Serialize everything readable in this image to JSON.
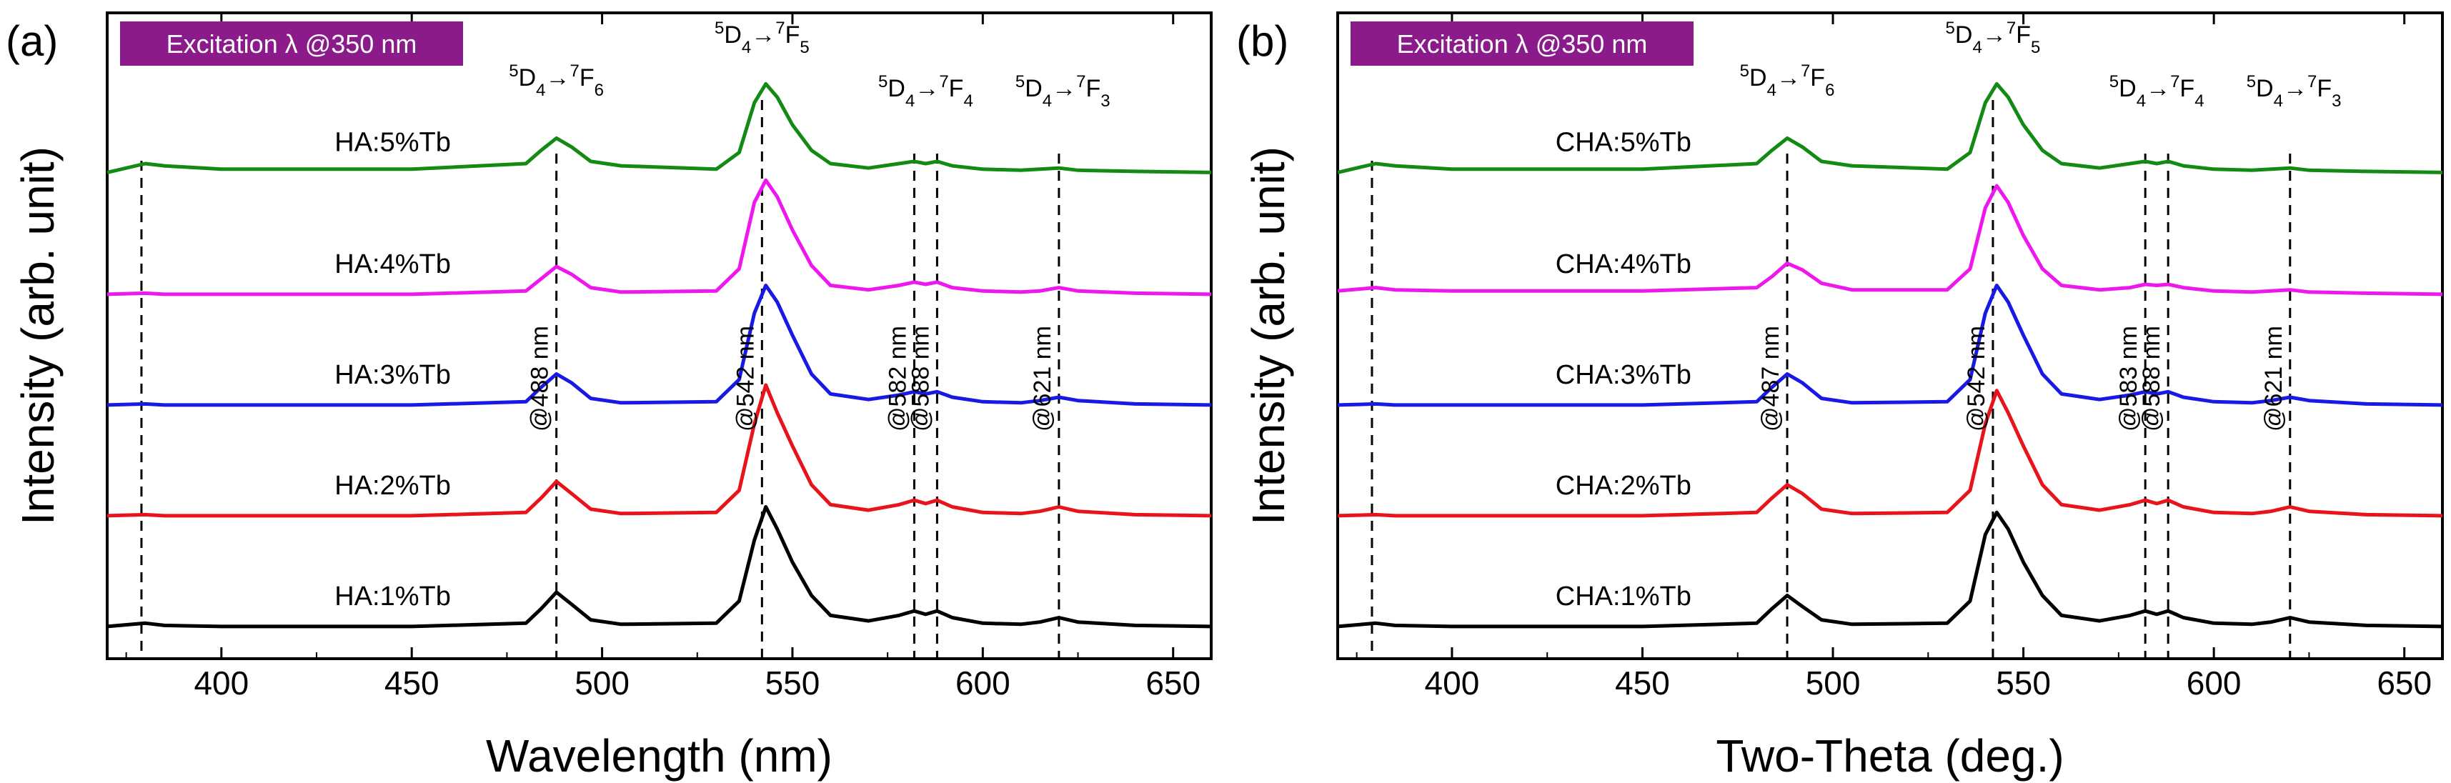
{
  "colors": {
    "HA:1%Tb": "#000000",
    "HA:2%Tb": "#e8141b",
    "HA:3%Tb": "#1919e6",
    "HA:4%Tb": "#ee18ee",
    "HA:5%Tb": "#138a13",
    "excitation_box": "#8b1a8b"
  },
  "chart_data": [
    {
      "type": "line",
      "panel_label": "(a)",
      "excitation_label": "Excitation λ @350 nm",
      "xlabel": "Wavelength (nm)",
      "ylabel": "Intensity (arb. unit)",
      "xlim": [
        370,
        660
      ],
      "xticks": [
        400,
        450,
        500,
        550,
        600,
        650
      ],
      "ylim": [
        0,
        6
      ],
      "y_ticks_labeled": false,
      "grid": false,
      "x": [
        370,
        380,
        385,
        400,
        450,
        480,
        484,
        488,
        492,
        497,
        505,
        530,
        536,
        540,
        543,
        546,
        550,
        555,
        560,
        570,
        578,
        582,
        585,
        588,
        592,
        600,
        610,
        615,
        620,
        625,
        640,
        660
      ],
      "series": [
        {
          "name": "HA:1%Tb",
          "offset": 0.0,
          "color": "#000000",
          "values": [
            0.02,
            0.05,
            0.03,
            0.02,
            0.02,
            0.05,
            0.18,
            0.33,
            0.22,
            0.08,
            0.04,
            0.05,
            0.25,
            0.8,
            1.1,
            0.9,
            0.6,
            0.3,
            0.12,
            0.07,
            0.12,
            0.16,
            0.13,
            0.16,
            0.1,
            0.05,
            0.04,
            0.06,
            0.1,
            0.06,
            0.03,
            0.02
          ]
        },
        {
          "name": "HA:2%Tb",
          "offset": 1.0,
          "color": "#e8141b",
          "values": [
            0.02,
            0.03,
            0.02,
            0.02,
            0.02,
            0.05,
            0.18,
            0.33,
            0.22,
            0.08,
            0.04,
            0.05,
            0.25,
            0.85,
            1.2,
            0.95,
            0.65,
            0.3,
            0.12,
            0.07,
            0.12,
            0.16,
            0.13,
            0.16,
            0.1,
            0.05,
            0.04,
            0.06,
            0.1,
            0.06,
            0.03,
            0.02
          ]
        },
        {
          "name": "HA:3%Tb",
          "offset": 2.0,
          "color": "#1919e6",
          "values": [
            0.02,
            0.03,
            0.02,
            0.02,
            0.02,
            0.05,
            0.18,
            0.3,
            0.22,
            0.08,
            0.04,
            0.05,
            0.25,
            0.85,
            1.1,
            0.95,
            0.65,
            0.3,
            0.12,
            0.07,
            0.11,
            0.14,
            0.12,
            0.14,
            0.09,
            0.05,
            0.04,
            0.06,
            0.09,
            0.06,
            0.03,
            0.02
          ]
        },
        {
          "name": "HA:4%Tb",
          "offset": 3.0,
          "color": "#ee18ee",
          "values": [
            0.02,
            0.03,
            0.02,
            0.02,
            0.02,
            0.05,
            0.16,
            0.27,
            0.2,
            0.08,
            0.04,
            0.05,
            0.25,
            0.85,
            1.05,
            0.9,
            0.6,
            0.28,
            0.1,
            0.06,
            0.1,
            0.13,
            0.11,
            0.13,
            0.08,
            0.05,
            0.04,
            0.05,
            0.08,
            0.05,
            0.03,
            0.02
          ]
        },
        {
          "name": "HA:5%Tb",
          "offset": 4.1,
          "color": "#138a13",
          "values": [
            0.02,
            0.1,
            0.08,
            0.05,
            0.05,
            0.1,
            0.22,
            0.33,
            0.25,
            0.12,
            0.08,
            0.05,
            0.2,
            0.65,
            0.82,
            0.7,
            0.45,
            0.22,
            0.1,
            0.06,
            0.1,
            0.12,
            0.1,
            0.12,
            0.08,
            0.05,
            0.04,
            0.05,
            0.06,
            0.04,
            0.03,
            0.02
          ]
        }
      ],
      "dashed_lines_x": [
        379,
        488,
        542,
        582,
        588,
        620
      ],
      "peak_labels": [
        {
          "text": "@488 nm",
          "x": 488
        },
        {
          "text": "@542 nm",
          "x": 542
        },
        {
          "text": "@582 nm",
          "x": 582
        },
        {
          "text": "@588 nm",
          "x": 588
        },
        {
          "text": "@621 nm",
          "x": 620
        }
      ],
      "transition_labels": [
        {
          "x": 488,
          "upper": "5",
          "base1": "D",
          "sub1": "4",
          "arrow": "→",
          "upper2": "7",
          "base2": "F",
          "sub2": "6"
        },
        {
          "x": 542,
          "upper": "5",
          "base1": "D",
          "sub1": "4",
          "arrow": "→",
          "upper2": "7",
          "base2": "F",
          "sub2": "5"
        },
        {
          "x": 585,
          "upper": "5",
          "base1": "D",
          "sub1": "4",
          "arrow": "→",
          "upper2": "7",
          "base2": "F",
          "sub2": "4"
        },
        {
          "x": 621,
          "upper": "5",
          "base1": "D",
          "sub1": "4",
          "arrow": "→",
          "upper2": "7",
          "base2": "F",
          "sub2": "3"
        }
      ]
    },
    {
      "type": "line",
      "panel_label": "(b)",
      "excitation_label": "Excitation λ @350 nm",
      "xlabel": "Two-Theta (deg.)",
      "ylabel": "Intensity (arb. unit)",
      "xlim": [
        370,
        660
      ],
      "xticks": [
        400,
        450,
        500,
        550,
        600,
        650
      ],
      "ylim": [
        0,
        6
      ],
      "y_ticks_labeled": false,
      "grid": false,
      "x": [
        370,
        380,
        385,
        400,
        450,
        480,
        484,
        488,
        492,
        497,
        505,
        530,
        536,
        540,
        543,
        546,
        550,
        555,
        560,
        570,
        578,
        582,
        585,
        588,
        592,
        600,
        610,
        615,
        620,
        625,
        640,
        660
      ],
      "series": [
        {
          "name": "CHA:1%Tb",
          "offset": 0.0,
          "color": "#000000",
          "values": [
            0.02,
            0.05,
            0.03,
            0.02,
            0.02,
            0.05,
            0.18,
            0.3,
            0.2,
            0.08,
            0.04,
            0.05,
            0.25,
            0.85,
            1.05,
            0.9,
            0.6,
            0.3,
            0.12,
            0.07,
            0.12,
            0.16,
            0.13,
            0.16,
            0.1,
            0.05,
            0.04,
            0.06,
            0.1,
            0.06,
            0.03,
            0.02
          ]
        },
        {
          "name": "CHA:2%Tb",
          "offset": 1.0,
          "color": "#e8141b",
          "values": [
            0.02,
            0.03,
            0.02,
            0.02,
            0.02,
            0.05,
            0.18,
            0.3,
            0.22,
            0.08,
            0.04,
            0.05,
            0.25,
            0.85,
            1.15,
            0.95,
            0.65,
            0.3,
            0.12,
            0.07,
            0.12,
            0.16,
            0.13,
            0.16,
            0.1,
            0.05,
            0.04,
            0.06,
            0.1,
            0.06,
            0.03,
            0.02
          ]
        },
        {
          "name": "CHA:3%Tb",
          "offset": 2.0,
          "color": "#1919e6",
          "values": [
            0.02,
            0.03,
            0.02,
            0.02,
            0.02,
            0.05,
            0.18,
            0.3,
            0.22,
            0.08,
            0.04,
            0.05,
            0.25,
            0.85,
            1.1,
            0.95,
            0.65,
            0.3,
            0.12,
            0.07,
            0.11,
            0.14,
            0.12,
            0.14,
            0.09,
            0.05,
            0.04,
            0.06,
            0.09,
            0.06,
            0.03,
            0.02
          ]
        },
        {
          "name": "CHA:4%Tb",
          "offset": 3.0,
          "color": "#ee18ee",
          "values": [
            0.05,
            0.08,
            0.06,
            0.05,
            0.05,
            0.08,
            0.18,
            0.3,
            0.24,
            0.12,
            0.06,
            0.06,
            0.25,
            0.8,
            1.0,
            0.85,
            0.55,
            0.25,
            0.1,
            0.06,
            0.08,
            0.11,
            0.1,
            0.11,
            0.08,
            0.05,
            0.04,
            0.05,
            0.06,
            0.04,
            0.03,
            0.02
          ]
        },
        {
          "name": "CHA:5%Tb",
          "offset": 4.1,
          "color": "#138a13",
          "values": [
            0.02,
            0.1,
            0.08,
            0.05,
            0.05,
            0.1,
            0.22,
            0.33,
            0.25,
            0.12,
            0.08,
            0.05,
            0.2,
            0.65,
            0.82,
            0.7,
            0.45,
            0.22,
            0.1,
            0.06,
            0.1,
            0.12,
            0.1,
            0.12,
            0.08,
            0.05,
            0.04,
            0.05,
            0.06,
            0.04,
            0.03,
            0.02
          ]
        }
      ],
      "dashed_lines_x": [
        379,
        488,
        542,
        582,
        588,
        620
      ],
      "peak_labels": [
        {
          "text": "@487 nm",
          "x": 488
        },
        {
          "text": "@542 nm",
          "x": 542
        },
        {
          "text": "@583 nm",
          "x": 582
        },
        {
          "text": "@588 nm",
          "x": 588
        },
        {
          "text": "@621 nm",
          "x": 620
        }
      ],
      "transition_labels": [
        {
          "x": 488,
          "upper": "5",
          "base1": "D",
          "sub1": "4",
          "arrow": "→",
          "upper2": "7",
          "base2": "F",
          "sub2": "6"
        },
        {
          "x": 542,
          "upper": "5",
          "base1": "D",
          "sub1": "4",
          "arrow": "→",
          "upper2": "7",
          "base2": "F",
          "sub2": "5"
        },
        {
          "x": 585,
          "upper": "5",
          "base1": "D",
          "sub1": "4",
          "arrow": "→",
          "upper2": "7",
          "base2": "F",
          "sub2": "4"
        },
        {
          "x": 621,
          "upper": "5",
          "base1": "D",
          "sub1": "4",
          "arrow": "→",
          "upper2": "7",
          "base2": "F",
          "sub2": "3"
        }
      ]
    }
  ]
}
